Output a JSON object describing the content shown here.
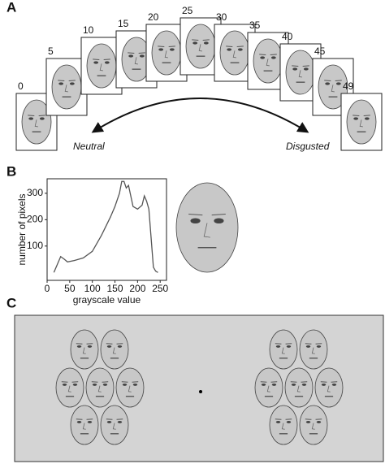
{
  "panel_a": {
    "label": "A",
    "morph_levels": [
      0,
      5,
      10,
      15,
      20,
      25,
      30,
      35,
      40,
      45,
      49
    ],
    "start_label": "Neutral",
    "end_label": "Disgusted"
  },
  "panel_b": {
    "label": "B"
  },
  "panel_c": {
    "label": "C"
  },
  "chart_data": {
    "type": "line",
    "x_label": "grayscale value",
    "y_label": "number of pixels",
    "x": [
      15,
      25,
      30,
      38,
      45,
      60,
      80,
      100,
      120,
      140,
      150,
      160,
      165,
      170,
      175,
      180,
      185,
      190,
      200,
      210,
      215,
      220,
      225,
      230,
      235,
      240,
      245
    ],
    "series": [
      {
        "color": "#555555",
        "values": [
          0,
          40,
          60,
          50,
          40,
          45,
          55,
          80,
          140,
          210,
          250,
          300,
          345,
          345,
          320,
          330,
          290,
          250,
          240,
          255,
          290,
          270,
          240,
          130,
          20,
          5,
          0
        ]
      }
    ],
    "xlim": [
      0,
      264
    ],
    "ylim": [
      -30,
      355
    ],
    "xticks": [
      0,
      50,
      100,
      150,
      200,
      250
    ],
    "yticks": [
      100,
      200,
      300
    ]
  }
}
